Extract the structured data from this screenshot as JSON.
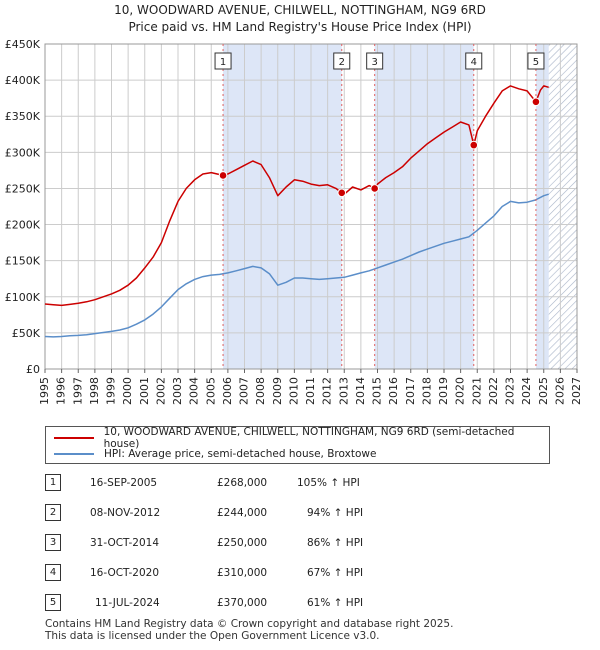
{
  "chart_data": {
    "type": "line",
    "title": "10, WOODWARD AVENUE, CHILWELL, NOTTINGHAM, NG9 6RD",
    "subtitle": "Price paid vs. HM Land Registry's House Price Index (HPI)",
    "x_range": [
      1995,
      2027
    ],
    "ylim": [
      0,
      450000
    ],
    "y_ticks": [
      {
        "value": 0,
        "label": "£0"
      },
      {
        "value": 50000,
        "label": "£50K"
      },
      {
        "value": 100000,
        "label": "£100K"
      },
      {
        "value": 150000,
        "label": "£150K"
      },
      {
        "value": 200000,
        "label": "£200K"
      },
      {
        "value": 250000,
        "label": "£250K"
      },
      {
        "value": 300000,
        "label": "£300K"
      },
      {
        "value": 350000,
        "label": "£350K"
      },
      {
        "value": 400000,
        "label": "£400K"
      },
      {
        "value": 450000,
        "label": "£450K"
      }
    ],
    "x_ticks": [
      "1995",
      "1996",
      "1997",
      "1998",
      "1999",
      "2000",
      "2001",
      "2002",
      "2003",
      "2004",
      "2005",
      "2006",
      "2007",
      "2008",
      "2009",
      "2010",
      "2011",
      "2012",
      "2013",
      "2014",
      "2015",
      "2016",
      "2017",
      "2018",
      "2019",
      "2020",
      "2021",
      "2022",
      "2023",
      "2024",
      "2025",
      "2026",
      "2027"
    ],
    "data_end": 2025.3,
    "shaded_periods": [
      {
        "from": 2005.71,
        "to": 2012.85
      },
      {
        "from": 2014.83,
        "to": 2020.79
      },
      {
        "from": 2024.53,
        "to": 2025.3
      }
    ],
    "hatched_from": 2025.3,
    "series": [
      {
        "name": "10, WOODWARD AVENUE, CHILWELL, NOTTINGHAM, NG9 6RD (semi-detached house)",
        "color": "#cc0000",
        "points": [
          [
            1995.0,
            90000
          ],
          [
            1995.5,
            89000
          ],
          [
            1996.0,
            88000
          ],
          [
            1996.5,
            89500
          ],
          [
            1997.0,
            91000
          ],
          [
            1997.5,
            93000
          ],
          [
            1998.0,
            96000
          ],
          [
            1998.5,
            100000
          ],
          [
            1999.0,
            104000
          ],
          [
            1999.5,
            109000
          ],
          [
            2000.0,
            116000
          ],
          [
            2000.5,
            126000
          ],
          [
            2001.0,
            140000
          ],
          [
            2001.5,
            155000
          ],
          [
            2002.0,
            175000
          ],
          [
            2002.5,
            205000
          ],
          [
            2003.0,
            232000
          ],
          [
            2003.5,
            250000
          ],
          [
            2004.0,
            262000
          ],
          [
            2004.5,
            270000
          ],
          [
            2005.0,
            272000
          ],
          [
            2005.71,
            268000
          ],
          [
            2006.0,
            270000
          ],
          [
            2006.5,
            276000
          ],
          [
            2007.0,
            282000
          ],
          [
            2007.5,
            288000
          ],
          [
            2008.0,
            283000
          ],
          [
            2008.5,
            265000
          ],
          [
            2009.0,
            240000
          ],
          [
            2009.5,
            252000
          ],
          [
            2010.0,
            262000
          ],
          [
            2010.5,
            260000
          ],
          [
            2011.0,
            256000
          ],
          [
            2011.5,
            254000
          ],
          [
            2012.0,
            255000
          ],
          [
            2012.5,
            250000
          ],
          [
            2012.85,
            244000
          ],
          [
            2013.0,
            242000
          ],
          [
            2013.5,
            252000
          ],
          [
            2014.0,
            248000
          ],
          [
            2014.5,
            254000
          ],
          [
            2014.83,
            250000
          ],
          [
            2015.0,
            256000
          ],
          [
            2015.5,
            265000
          ],
          [
            2016.0,
            272000
          ],
          [
            2016.5,
            280000
          ],
          [
            2017.0,
            292000
          ],
          [
            2017.5,
            302000
          ],
          [
            2018.0,
            312000
          ],
          [
            2018.5,
            320000
          ],
          [
            2019.0,
            328000
          ],
          [
            2019.5,
            335000
          ],
          [
            2020.0,
            342000
          ],
          [
            2020.5,
            338000
          ],
          [
            2020.79,
            310000
          ],
          [
            2021.0,
            330000
          ],
          [
            2021.5,
            350000
          ],
          [
            2022.0,
            368000
          ],
          [
            2022.5,
            385000
          ],
          [
            2023.0,
            392000
          ],
          [
            2023.5,
            388000
          ],
          [
            2024.0,
            385000
          ],
          [
            2024.53,
            370000
          ],
          [
            2024.8,
            386000
          ],
          [
            2025.0,
            392000
          ],
          [
            2025.3,
            390000
          ]
        ]
      },
      {
        "name": "HPI: Average price, semi-detached house, Broxtowe",
        "color": "#5b8ec9",
        "points": [
          [
            1995.0,
            45000
          ],
          [
            1995.5,
            44500
          ],
          [
            1996.0,
            45000
          ],
          [
            1996.5,
            46000
          ],
          [
            1997.0,
            46500
          ],
          [
            1997.5,
            47500
          ],
          [
            1998.0,
            49000
          ],
          [
            1998.5,
            50500
          ],
          [
            1999.0,
            52000
          ],
          [
            1999.5,
            54000
          ],
          [
            2000.0,
            57000
          ],
          [
            2000.5,
            62000
          ],
          [
            2001.0,
            68000
          ],
          [
            2001.5,
            76000
          ],
          [
            2002.0,
            86000
          ],
          [
            2002.5,
            98000
          ],
          [
            2003.0,
            110000
          ],
          [
            2003.5,
            118000
          ],
          [
            2004.0,
            124000
          ],
          [
            2004.5,
            128000
          ],
          [
            2005.0,
            130000
          ],
          [
            2005.5,
            131000
          ],
          [
            2006.0,
            133000
          ],
          [
            2006.5,
            136000
          ],
          [
            2007.0,
            139000
          ],
          [
            2007.5,
            142000
          ],
          [
            2008.0,
            140000
          ],
          [
            2008.5,
            132000
          ],
          [
            2009.0,
            116000
          ],
          [
            2009.5,
            120000
          ],
          [
            2010.0,
            126000
          ],
          [
            2010.5,
            126000
          ],
          [
            2011.0,
            125000
          ],
          [
            2011.5,
            124000
          ],
          [
            2012.0,
            125000
          ],
          [
            2012.5,
            126000
          ],
          [
            2013.0,
            127000
          ],
          [
            2013.5,
            130000
          ],
          [
            2014.0,
            133000
          ],
          [
            2014.5,
            136000
          ],
          [
            2015.0,
            140000
          ],
          [
            2015.5,
            144000
          ],
          [
            2016.0,
            148000
          ],
          [
            2016.5,
            152000
          ],
          [
            2017.0,
            157000
          ],
          [
            2017.5,
            162000
          ],
          [
            2018.0,
            166000
          ],
          [
            2018.5,
            170000
          ],
          [
            2019.0,
            174000
          ],
          [
            2019.5,
            177000
          ],
          [
            2020.0,
            180000
          ],
          [
            2020.5,
            183000
          ],
          [
            2021.0,
            192000
          ],
          [
            2021.5,
            202000
          ],
          [
            2022.0,
            212000
          ],
          [
            2022.5,
            225000
          ],
          [
            2023.0,
            232000
          ],
          [
            2023.5,
            230000
          ],
          [
            2024.0,
            231000
          ],
          [
            2024.5,
            234000
          ],
          [
            2025.0,
            240000
          ],
          [
            2025.3,
            242000
          ]
        ]
      }
    ],
    "markers": [
      {
        "label": "1",
        "x": 2005.71,
        "y": 268000
      },
      {
        "label": "2",
        "x": 2012.85,
        "y": 244000
      },
      {
        "label": "3",
        "x": 2014.83,
        "y": 250000
      },
      {
        "label": "4",
        "x": 2020.79,
        "y": 310000
      },
      {
        "label": "5",
        "x": 2024.53,
        "y": 370000
      }
    ]
  },
  "legend": {
    "property": "10, WOODWARD AVENUE, CHILWELL, NOTTINGHAM, NG9 6RD (semi-detached house)",
    "hpi": "HPI: Average price, semi-detached house, Broxtowe"
  },
  "sales": [
    {
      "num": "1",
      "date": "16-SEP-2005",
      "price": "£268,000",
      "hpi": "105% ↑ HPI"
    },
    {
      "num": "2",
      "date": "08-NOV-2012",
      "price": "£244,000",
      "hpi": "94% ↑ HPI"
    },
    {
      "num": "3",
      "date": "31-OCT-2014",
      "price": "£250,000",
      "hpi": "86% ↑ HPI"
    },
    {
      "num": "4",
      "date": "16-OCT-2020",
      "price": "£310,000",
      "hpi": "67% ↑ HPI"
    },
    {
      "num": "5",
      "date": "11-JUL-2024",
      "price": "£370,000",
      "hpi": "61% ↑ HPI"
    }
  ],
  "footer": {
    "line1": "Contains HM Land Registry data © Crown copyright and database right 2025.",
    "line2": "This data is licensed under the Open Government Licence v3.0."
  },
  "colors": {
    "property": "#cc0000",
    "hpi": "#5b8ec9",
    "shade": "#dde6f7",
    "dashed": "#e06060"
  }
}
